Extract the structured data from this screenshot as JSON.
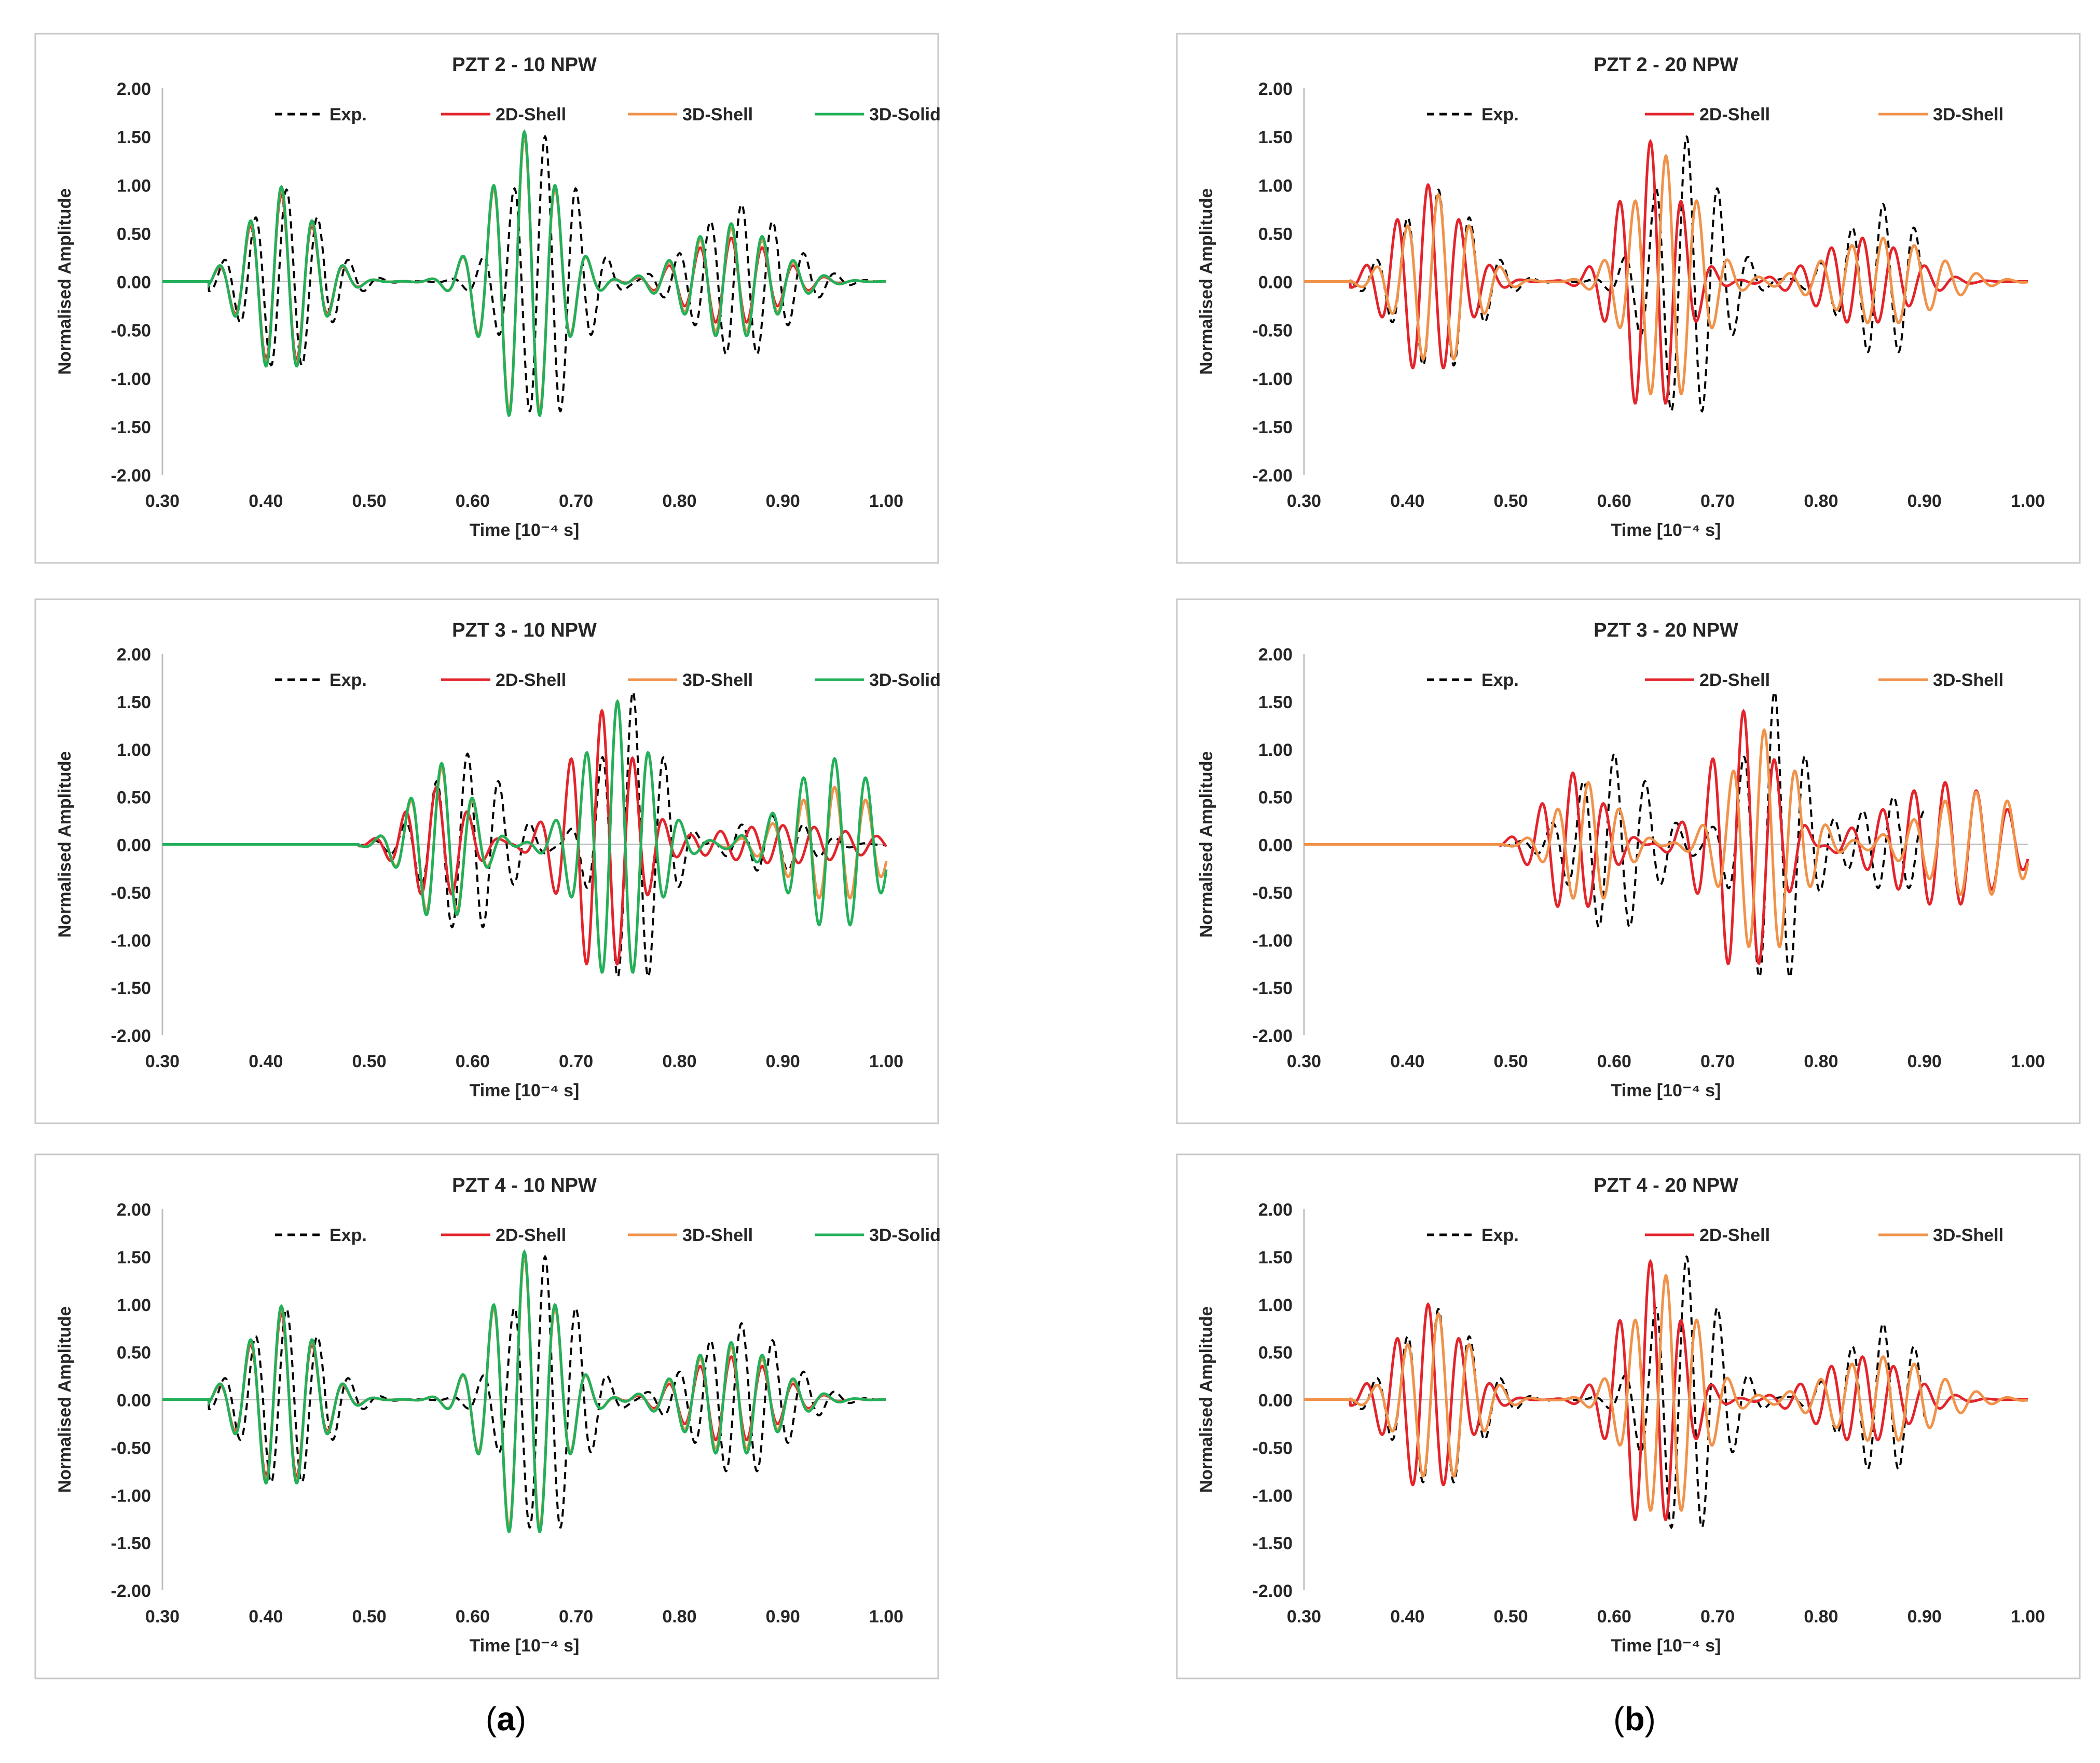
{
  "chart_data": [
    {
      "type": "line",
      "title": "PZT 2 - 10 NPW",
      "xlabel": "Time [10⁻⁴ s]",
      "ylabel": "Normalised Amplitude",
      "xlim": [
        0.3,
        1.0
      ],
      "ylim": [
        -2.0,
        2.0
      ],
      "xticks": [
        "0.30",
        "0.40",
        "0.50",
        "0.60",
        "0.70",
        "0.80",
        "0.90",
        "1.00"
      ],
      "yticks": [
        "2.00",
        "1.50",
        "1.00",
        "0.50",
        "0.00",
        "-0.50",
        "-1.00",
        "-1.50",
        "-2.00"
      ],
      "legend": [
        "Exp.",
        "2D-Shell",
        "3D-Shell",
        "3D-Solid"
      ],
      "series": [
        {
          "name": "Exp.",
          "style": "dashed",
          "color": "#000000",
          "packets": [
            {
              "t": 0.42,
              "w": 0.05,
              "a": 0.95,
              "f": 33
            },
            {
              "t": 0.67,
              "w": 0.045,
              "a": 1.5,
              "f": 33
            },
            {
              "t": 0.86,
              "w": 0.06,
              "a": 0.8,
              "f": 33
            }
          ],
          "end": 1.0
        },
        {
          "name": "2D-Shell",
          "style": "solid",
          "color": "#e3242b",
          "packets": [
            {
              "t": 0.415,
              "w": 0.045,
              "a": 0.9,
              "f": 33
            },
            {
              "t": 0.65,
              "w": 0.045,
              "a": 1.5,
              "f": 33
            },
            {
              "t": 0.85,
              "w": 0.06,
              "a": 0.45,
              "f": 33
            }
          ],
          "end": 1.0
        },
        {
          "name": "3D-Shell",
          "style": "solid",
          "color": "#f0924a",
          "packets": [
            {
              "t": 0.415,
              "w": 0.045,
              "a": 0.95,
              "f": 33
            },
            {
              "t": 0.65,
              "w": 0.045,
              "a": 1.5,
              "f": 33
            },
            {
              "t": 0.85,
              "w": 0.06,
              "a": 0.55,
              "f": 33
            }
          ],
          "end": 1.0
        },
        {
          "name": "3D-Solid",
          "style": "solid",
          "color": "#22b05a",
          "packets": [
            {
              "t": 0.415,
              "w": 0.045,
              "a": 0.98,
              "f": 33
            },
            {
              "t": 0.65,
              "w": 0.045,
              "a": 1.55,
              "f": 33
            },
            {
              "t": 0.85,
              "w": 0.06,
              "a": 0.6,
              "f": 33
            }
          ],
          "end": 1.0
        }
      ]
    },
    {
      "type": "line",
      "title": "PZT 2 - 20 NPW",
      "xlabel": "Time [10⁻⁴ s]",
      "ylabel": "Normalised Amplitude",
      "xlim": [
        0.3,
        1.0
      ],
      "ylim": [
        -2.0,
        2.0
      ],
      "xticks": [
        "0.30",
        "0.40",
        "0.50",
        "0.60",
        "0.70",
        "0.80",
        "0.90",
        "1.00"
      ],
      "yticks": [
        "2.00",
        "1.50",
        "1.00",
        "0.50",
        "0.00",
        "-0.50",
        "-1.00",
        "-1.50",
        "-2.00"
      ],
      "legend": [
        "Exp.",
        "2D-Shell",
        "3D-Shell"
      ],
      "series": [
        {
          "name": "Exp.",
          "style": "dashed",
          "color": "#000000",
          "packets": [
            {
              "t": 0.43,
              "w": 0.05,
              "a": 0.95,
              "f": 33
            },
            {
              "t": 0.67,
              "w": 0.045,
              "a": 1.5,
              "f": 33
            },
            {
              "t": 0.86,
              "w": 0.05,
              "a": 0.8,
              "f": 33
            }
          ],
          "end": 0.9
        },
        {
          "name": "2D-Shell",
          "style": "solid",
          "color": "#e3242b",
          "packets": [
            {
              "t": 0.42,
              "w": 0.045,
              "a": 1.0,
              "f": 33
            },
            {
              "t": 0.635,
              "w": 0.04,
              "a": 1.45,
              "f": 33
            },
            {
              "t": 0.84,
              "w": 0.06,
              "a": 0.45,
              "f": 33
            }
          ],
          "end": 1.0
        },
        {
          "name": "3D-Shell",
          "style": "solid",
          "color": "#f0924a",
          "packets": [
            {
              "t": 0.43,
              "w": 0.045,
              "a": 0.9,
              "f": 33
            },
            {
              "t": 0.65,
              "w": 0.045,
              "a": 1.3,
              "f": 33
            },
            {
              "t": 0.86,
              "w": 0.07,
              "a": 0.45,
              "f": 33
            }
          ],
          "end": 1.0
        }
      ]
    },
    {
      "type": "line",
      "title": "PZT 3 - 10 NPW",
      "xlabel": "Time [10⁻⁴ s]",
      "ylabel": "Normalised Amplitude",
      "xlim": [
        0.3,
        1.0
      ],
      "ylim": [
        -2.0,
        2.0
      ],
      "xticks": [
        "0.30",
        "0.40",
        "0.50",
        "0.60",
        "0.70",
        "0.80",
        "0.90",
        "1.00"
      ],
      "yticks": [
        "2.00",
        "1.50",
        "1.00",
        "0.50",
        "0.00",
        "-0.50",
        "-1.00",
        "-1.50",
        "-2.00"
      ],
      "legend": [
        "Exp.",
        "2D-Shell",
        "3D-Shell",
        "3D-Solid"
      ],
      "series": [
        {
          "name": "Exp.",
          "style": "dashed",
          "color": "#000000",
          "packets": [
            {
              "t": 0.595,
              "w": 0.05,
              "a": 0.95,
              "f": 33
            },
            {
              "t": 0.755,
              "w": 0.04,
              "a": 1.6,
              "f": 33
            },
            {
              "t": 0.89,
              "w": 0.05,
              "a": 0.3,
              "f": 33
            }
          ],
          "end": 1.0
        },
        {
          "name": "2D-Shell",
          "style": "solid",
          "color": "#e3242b",
          "packets": [
            {
              "t": 0.565,
              "w": 0.04,
              "a": 0.6,
              "f": 33
            },
            {
              "t": 0.725,
              "w": 0.045,
              "a": 1.4,
              "f": 33
            },
            {
              "t": 0.9,
              "w": 0.1,
              "a": 0.2,
              "f": 33
            }
          ],
          "end": 1.0
        },
        {
          "name": "3D-Shell",
          "style": "solid",
          "color": "#f0924a",
          "packets": [
            {
              "t": 0.57,
              "w": 0.04,
              "a": 0.8,
              "f": 33
            },
            {
              "t": 0.74,
              "w": 0.045,
              "a": 1.5,
              "f": 33
            },
            {
              "t": 0.95,
              "w": 0.06,
              "a": 0.6,
              "f": 33
            }
          ],
          "end": 1.0
        },
        {
          "name": "3D-Solid",
          "style": "solid",
          "color": "#22b05a",
          "packets": [
            {
              "t": 0.57,
              "w": 0.04,
              "a": 0.85,
              "f": 33
            },
            {
              "t": 0.74,
              "w": 0.045,
              "a": 1.5,
              "f": 33
            },
            {
              "t": 0.95,
              "w": 0.06,
              "a": 0.9,
              "f": 33
            }
          ],
          "end": 1.0
        }
      ]
    },
    {
      "type": "line",
      "title": "PZT 3 - 20 NPW",
      "xlabel": "Time [10⁻⁴ s]",
      "ylabel": "Normalised Amplitude",
      "xlim": [
        0.3,
        1.0
      ],
      "ylim": [
        -2.0,
        2.0
      ],
      "xticks": [
        "0.30",
        "0.40",
        "0.50",
        "0.60",
        "0.70",
        "0.80",
        "0.90",
        "1.00"
      ],
      "yticks": [
        "2.00",
        "1.50",
        "1.00",
        "0.50",
        "0.00",
        "-0.50",
        "-1.00",
        "-1.50",
        "-2.00"
      ],
      "legend": [
        "Exp.",
        "2D-Shell",
        "3D-Shell"
      ],
      "series": [
        {
          "name": "Exp.",
          "style": "dashed",
          "color": "#000000",
          "packets": [
            {
              "t": 0.6,
              "w": 0.05,
              "a": 0.95,
              "f": 33
            },
            {
              "t": 0.755,
              "w": 0.04,
              "a": 1.6,
              "f": 33
            },
            {
              "t": 0.87,
              "w": 0.05,
              "a": 0.5,
              "f": 33
            }
          ],
          "end": 0.9
        },
        {
          "name": "2D-Shell",
          "style": "solid",
          "color": "#e3242b",
          "packets": [
            {
              "t": 0.56,
              "w": 0.04,
              "a": 0.75,
              "f": 33
            },
            {
              "t": 0.725,
              "w": 0.045,
              "a": 1.4,
              "f": 33
            },
            {
              "t": 0.92,
              "w": 0.08,
              "a": 0.65,
              "f": 33
            }
          ],
          "end": 1.0
        },
        {
          "name": "3D-Shell",
          "style": "solid",
          "color": "#f0924a",
          "packets": [
            {
              "t": 0.575,
              "w": 0.04,
              "a": 0.65,
              "f": 33
            },
            {
              "t": 0.745,
              "w": 0.045,
              "a": 1.2,
              "f": 33
            },
            {
              "t": 0.95,
              "w": 0.07,
              "a": 0.55,
              "f": 33
            }
          ],
          "end": 1.0
        }
      ]
    },
    {
      "type": "line",
      "title": "PZT 4 - 10 NPW",
      "xlabel": "Time [10⁻⁴ s]",
      "ylabel": "Normalised Amplitude",
      "xlim": [
        0.3,
        1.0
      ],
      "ylim": [
        -2.0,
        2.0
      ],
      "xticks": [
        "0.30",
        "0.40",
        "0.50",
        "0.60",
        "0.70",
        "0.80",
        "0.90",
        "1.00"
      ],
      "yticks": [
        "2.00",
        "1.50",
        "1.00",
        "0.50",
        "0.00",
        "-0.50",
        "-1.00",
        "-1.50",
        "-2.00"
      ],
      "legend": [
        "Exp.",
        "2D-Shell",
        "3D-Shell",
        "3D-Solid"
      ],
      "series": [
        {
          "name": "Exp.",
          "style": "dashed",
          "color": "#000000",
          "packets": [
            {
              "t": 0.42,
              "w": 0.05,
              "a": 0.95,
              "f": 33
            },
            {
              "t": 0.67,
              "w": 0.045,
              "a": 1.5,
              "f": 33
            },
            {
              "t": 0.86,
              "w": 0.06,
              "a": 0.8,
              "f": 33
            }
          ],
          "end": 1.0
        },
        {
          "name": "2D-Shell",
          "style": "solid",
          "color": "#e3242b",
          "packets": [
            {
              "t": 0.415,
              "w": 0.045,
              "a": 0.9,
              "f": 33
            },
            {
              "t": 0.65,
              "w": 0.045,
              "a": 1.5,
              "f": 33
            },
            {
              "t": 0.85,
              "w": 0.06,
              "a": 0.45,
              "f": 33
            }
          ],
          "end": 1.0
        },
        {
          "name": "3D-Shell",
          "style": "solid",
          "color": "#f0924a",
          "packets": [
            {
              "t": 0.415,
              "w": 0.045,
              "a": 0.95,
              "f": 33
            },
            {
              "t": 0.65,
              "w": 0.045,
              "a": 1.5,
              "f": 33
            },
            {
              "t": 0.85,
              "w": 0.06,
              "a": 0.55,
              "f": 33
            }
          ],
          "end": 1.0
        },
        {
          "name": "3D-Solid",
          "style": "solid",
          "color": "#22b05a",
          "packets": [
            {
              "t": 0.415,
              "w": 0.045,
              "a": 0.98,
              "f": 33
            },
            {
              "t": 0.65,
              "w": 0.045,
              "a": 1.55,
              "f": 33
            },
            {
              "t": 0.85,
              "w": 0.06,
              "a": 0.6,
              "f": 33
            }
          ],
          "end": 1.0
        }
      ]
    },
    {
      "type": "line",
      "title": "PZT 4 - 20 NPW",
      "xlabel": "Time [10⁻⁴ s]",
      "ylabel": "Normalised Amplitude",
      "xlim": [
        0.3,
        1.0
      ],
      "ylim": [
        -2.0,
        2.0
      ],
      "xticks": [
        "0.30",
        "0.40",
        "0.50",
        "0.60",
        "0.70",
        "0.80",
        "0.90",
        "1.00"
      ],
      "yticks": [
        "2.00",
        "1.50",
        "1.00",
        "0.50",
        "0.00",
        "-0.50",
        "-1.00",
        "-1.50",
        "-2.00"
      ],
      "legend": [
        "Exp.",
        "2D-Shell",
        "3D-Shell"
      ],
      "series": [
        {
          "name": "Exp.",
          "style": "dashed",
          "color": "#000000",
          "packets": [
            {
              "t": 0.43,
              "w": 0.05,
              "a": 0.95,
              "f": 33
            },
            {
              "t": 0.67,
              "w": 0.045,
              "a": 1.5,
              "f": 33
            },
            {
              "t": 0.86,
              "w": 0.05,
              "a": 0.8,
              "f": 33
            }
          ],
          "end": 0.9
        },
        {
          "name": "2D-Shell",
          "style": "solid",
          "color": "#e3242b",
          "packets": [
            {
              "t": 0.42,
              "w": 0.045,
              "a": 1.0,
              "f": 33
            },
            {
              "t": 0.635,
              "w": 0.04,
              "a": 1.45,
              "f": 33
            },
            {
              "t": 0.84,
              "w": 0.06,
              "a": 0.45,
              "f": 33
            }
          ],
          "end": 1.0
        },
        {
          "name": "3D-Shell",
          "style": "solid",
          "color": "#f0924a",
          "packets": [
            {
              "t": 0.43,
              "w": 0.045,
              "a": 0.9,
              "f": 33
            },
            {
              "t": 0.65,
              "w": 0.045,
              "a": 1.3,
              "f": 33
            },
            {
              "t": 0.86,
              "w": 0.07,
              "a": 0.45,
              "f": 33
            }
          ],
          "end": 1.0
        }
      ]
    }
  ],
  "captions": {
    "a_open": "(",
    "a_letter": "a",
    "a_close": ")",
    "b_open": "(",
    "b_letter": "b",
    "b_close": ")"
  }
}
